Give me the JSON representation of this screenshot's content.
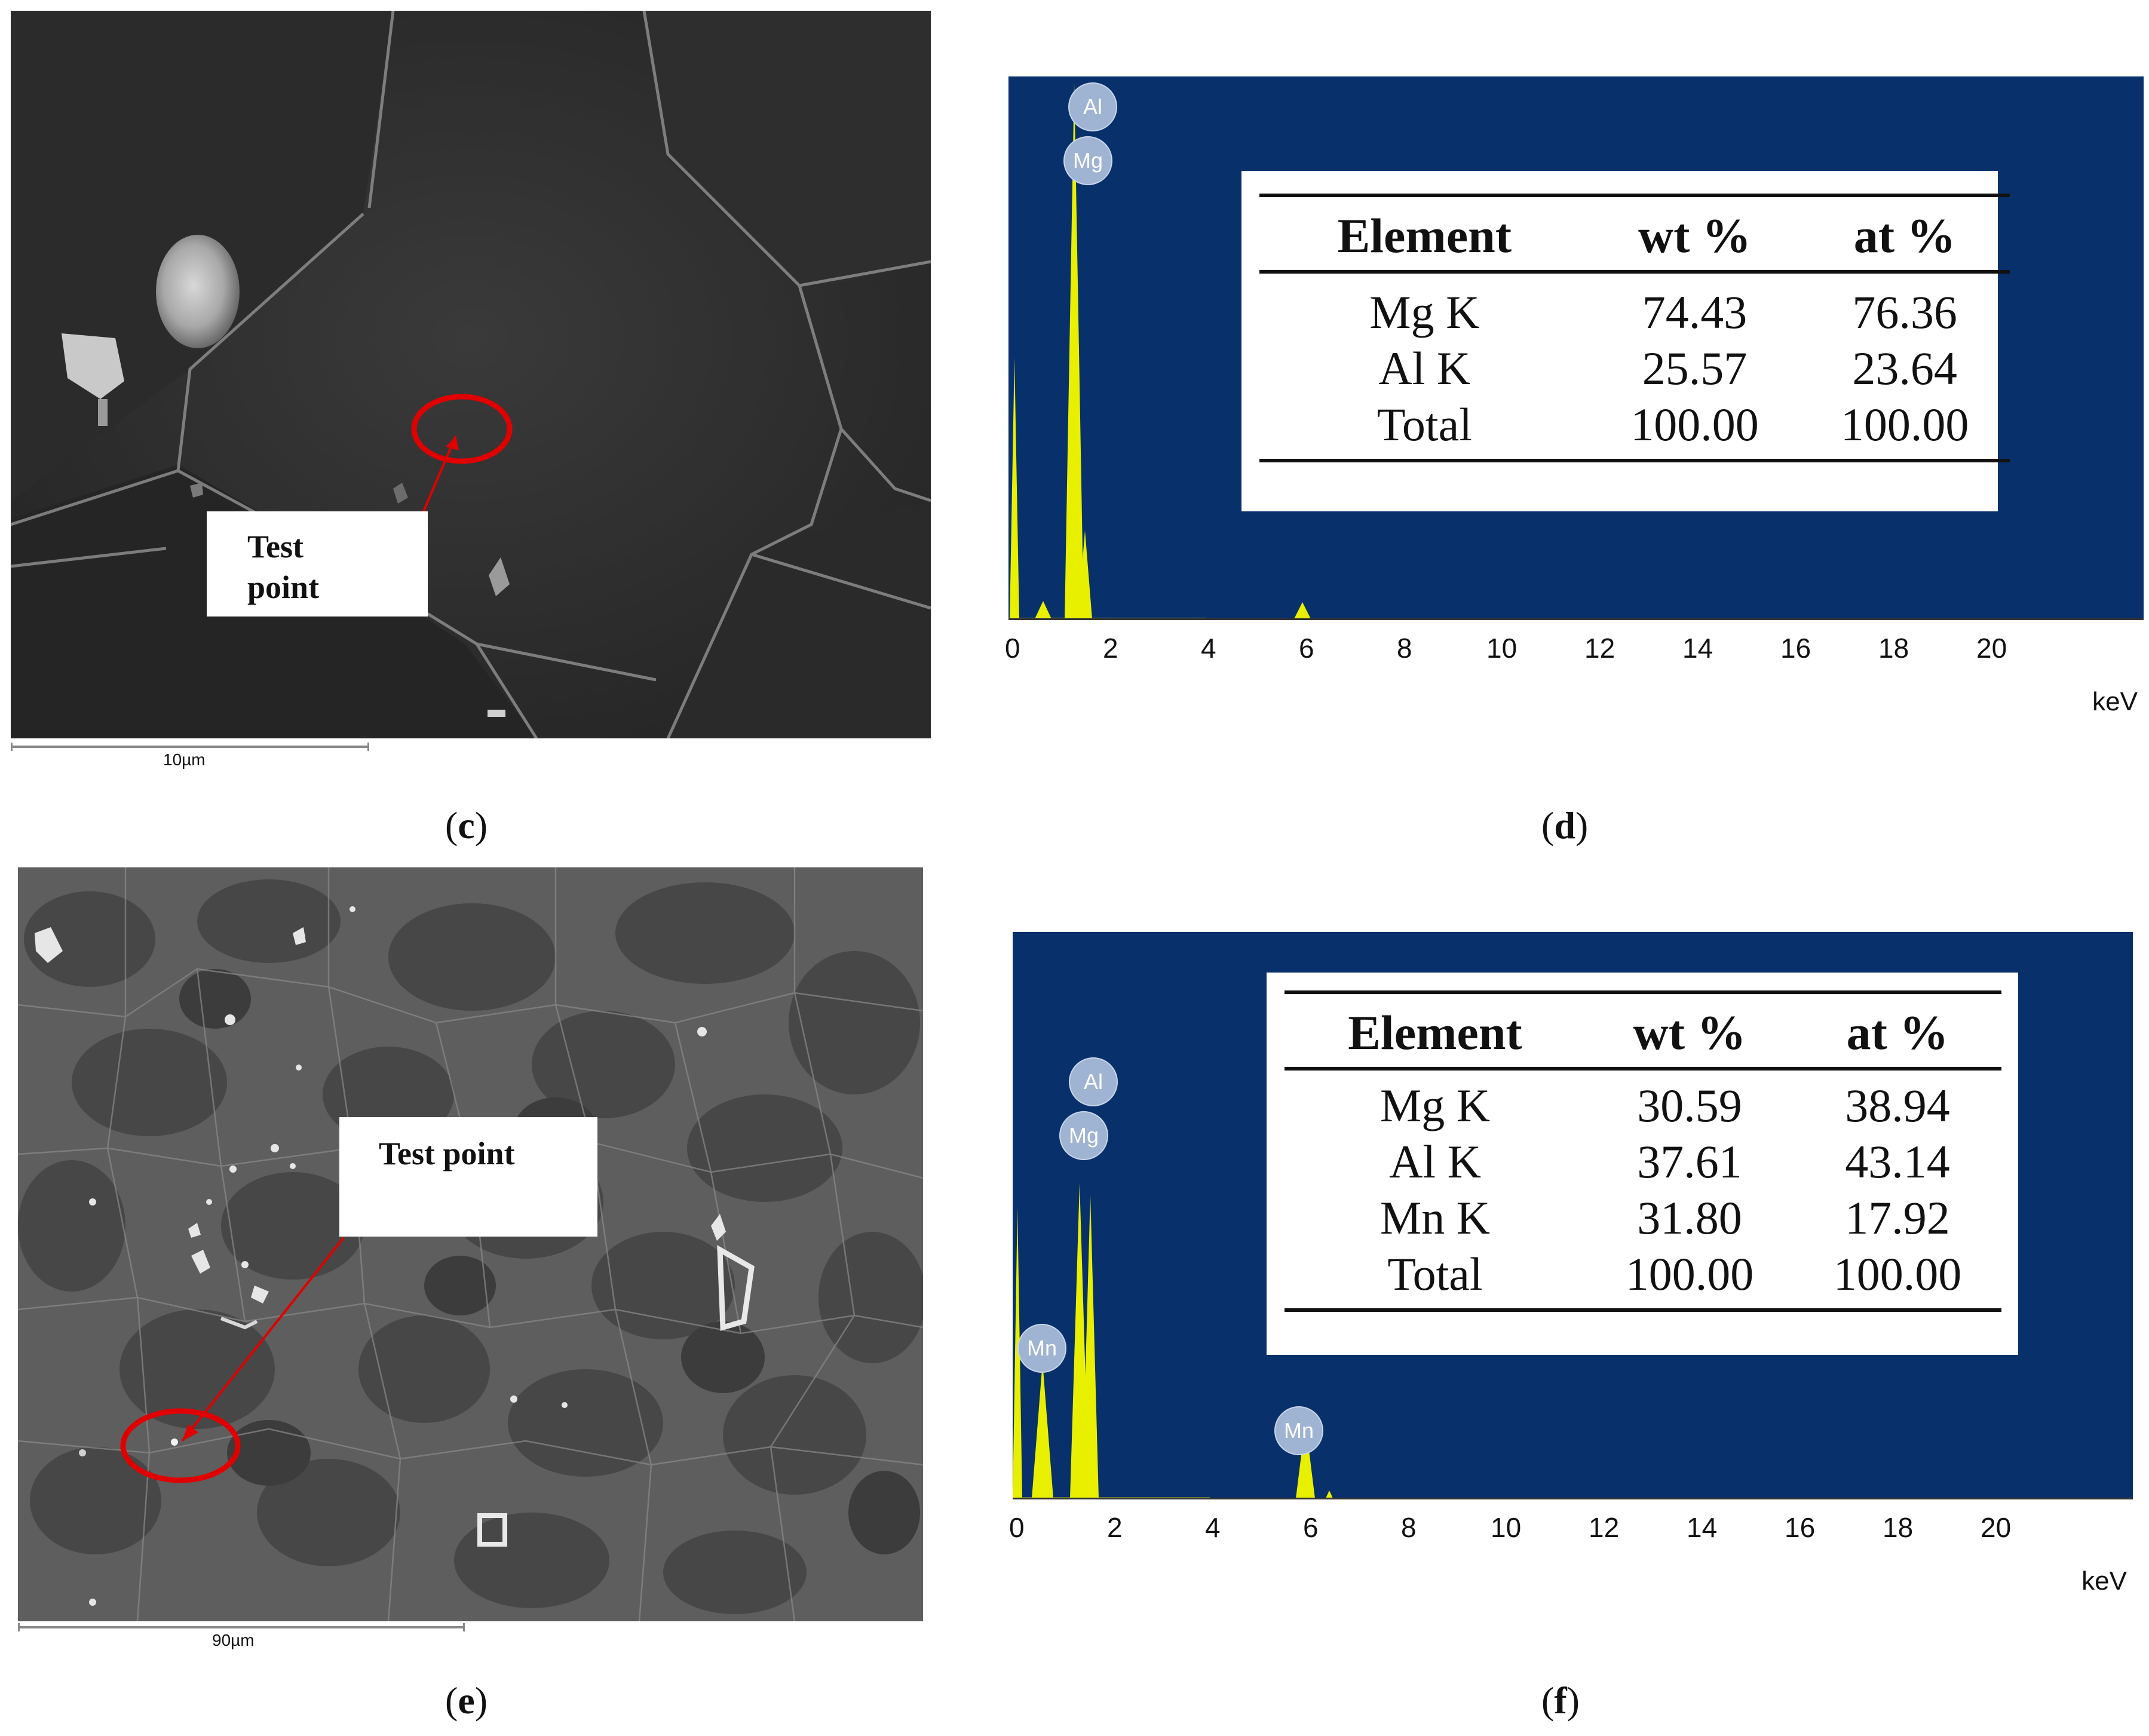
{
  "panels": {
    "c": {
      "caption": "(c)",
      "caption_letter": "c",
      "test_point_label_line1": "Test",
      "test_point_label_line2": "point",
      "scale_label": "10µm"
    },
    "d": {
      "caption": "(d)",
      "caption_letter": "d",
      "peak_labels": [
        "Al",
        "Mg"
      ],
      "axis_unit": "keV",
      "axis_ticks": [
        "0",
        "2",
        "4",
        "6",
        "8",
        "10",
        "12",
        "14",
        "16",
        "18",
        "20"
      ],
      "table": {
        "headers": [
          "Element",
          "wt %",
          "at %"
        ],
        "rows": [
          [
            "Mg K",
            "74.43",
            "76.36"
          ],
          [
            "Al K",
            "25.57",
            "23.64"
          ],
          [
            "Total",
            "100.00",
            "100.00"
          ]
        ]
      }
    },
    "e": {
      "caption": "(e)",
      "caption_letter": "e",
      "test_point_label": "Test point",
      "scale_label": "90µm"
    },
    "f": {
      "caption": "(f)",
      "caption_letter": "f",
      "peak_labels": [
        "Al",
        "Mg",
        "Mn",
        "Mn"
      ],
      "axis_unit": "keV",
      "axis_ticks": [
        "0",
        "2",
        "4",
        "6",
        "8",
        "10",
        "12",
        "14",
        "16",
        "18",
        "20"
      ],
      "table": {
        "headers": [
          "Element",
          "wt %",
          "at %"
        ],
        "rows": [
          [
            "Mg K",
            "30.59",
            "38.94"
          ],
          [
            "Al K",
            "37.61",
            "43.14"
          ],
          [
            "Mn K",
            "31.80",
            "17.92"
          ],
          [
            "Total",
            "100.00",
            "100.00"
          ]
        ]
      }
    }
  },
  "colors": {
    "spectrum_background": "#08306b",
    "peak_fill": "#e8f000",
    "marker_red": "#e00000"
  }
}
